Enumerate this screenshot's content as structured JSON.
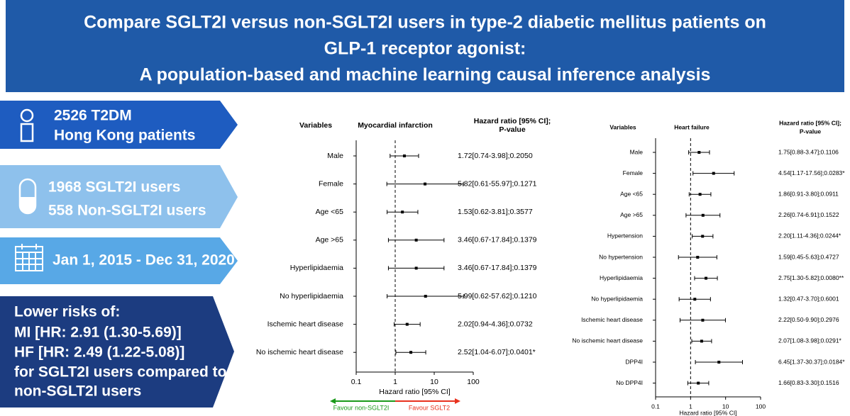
{
  "header": {
    "title_lines": [
      "Compare SGLT2I versus non-SGLT2I users in type-2 diabetic mellitus patients on",
      "GLP-1 receptor agonist:",
      "A population-based and machine learning causal inference analysis"
    ]
  },
  "panels": [
    {
      "lines": [
        "2526 T2DM",
        "Hong Kong patients"
      ]
    },
    {
      "lines": [
        "1968 SGLT2I users",
        "558 Non-SGLT2I users"
      ]
    },
    {
      "lines": [
        "Jan 1, 2015 - Dec 31, 2020"
      ]
    },
    {
      "lines": [
        "Lower risks of:",
        "MI [HR: 2.91 (1.30-5.69)]",
        "HF [HR: 2.49 (1.22-5.08)]",
        "for SGLT2I users compared to",
        "non-SGLT2I users"
      ]
    }
  ],
  "chart_data": [
    {
      "type": "forest",
      "title": "Myocardial infarction",
      "variables_header": "Variables",
      "estimate_header": [
        "Hazard ratio [95% CI];",
        "P-value"
      ],
      "categories": [
        "Male",
        "Female",
        "Age <65",
        "Age >65",
        "Hyperlipidaemia",
        "No hyperlipidaemia",
        "Ischemic heart disease",
        "No ischemic heart disease"
      ],
      "values": [
        1.72,
        5.82,
        1.53,
        3.46,
        3.46,
        5.99,
        2.02,
        2.52
      ],
      "ci_low": [
        0.74,
        0.61,
        0.62,
        0.67,
        0.67,
        0.62,
        0.94,
        1.04
      ],
      "ci_high": [
        3.98,
        55.97,
        3.81,
        17.84,
        17.84,
        57.62,
        4.36,
        6.07
      ],
      "value_labels": [
        "1.72[0.74-3.98];0.2050",
        "5.82[0.61-55.97];0.1271",
        "1.53[0.62-3.81];0.3577",
        "3.46[0.67-17.84];0.1379",
        "3.46[0.67-17.84];0.1379",
        "5.99[0.62-57.62];0.1210",
        "2.02[0.94-4.36];0.0732",
        "2.52[1.04-6.07];0.0401*"
      ],
      "xlabel": "Hazard ratio [95% CI]",
      "xlim": [
        0.1,
        100
      ],
      "xticks": [
        0.1,
        1,
        10,
        100
      ],
      "log_x": true,
      "reference_line": 1,
      "favour_labels": [
        {
          "text": "Favour non-SGLT2I",
          "color": "#1a9a1a"
        },
        {
          "text": "Favour SGLT2",
          "color": "#e8321e"
        }
      ]
    },
    {
      "type": "forest",
      "title": "Heart failure",
      "variables_header": "Variables",
      "estimate_header": [
        "Hazard ratio [95% CI];",
        "P-value"
      ],
      "categories": [
        "Male",
        "Female",
        "Age <65",
        "Age >65",
        "Hypertension",
        "No hypertension",
        "Hyperlipidaemia",
        "No hyperlipidaemia",
        "Ischemic heart disease",
        "No ischemic heart disease",
        "DPP4I",
        "No DPP4I"
      ],
      "values": [
        1.75,
        4.54,
        1.86,
        2.26,
        2.2,
        1.59,
        2.75,
        1.32,
        2.22,
        2.07,
        6.45,
        1.66
      ],
      "ci_low": [
        0.88,
        1.17,
        0.91,
        0.74,
        1.11,
        0.45,
        1.3,
        0.47,
        0.5,
        1.08,
        1.37,
        0.83
      ],
      "ci_high": [
        3.47,
        17.56,
        3.8,
        6.91,
        4.36,
        5.63,
        5.82,
        3.7,
        9.9,
        3.98,
        30.37,
        3.3
      ],
      "value_labels": [
        "1.75[0.88-3.47];0.1106",
        "4.54[1.17-17.56];0.0283*",
        "1.86[0.91-3.80];0.0911",
        "2.26[0.74-6.91];0.1522",
        "2.20[1.11-4.36];0.0244*",
        "1.59[0.45-5.63];0.4727",
        "2.75[1.30-5.82];0.0080**",
        "1.32[0.47-3.70];0.6001",
        "2.22[0.50-9.90];0.2976",
        "2.07[1.08-3.98];0.0291*",
        "6.45[1.37-30.37];0.0184*",
        "1.66[0.83-3.30];0.1516"
      ],
      "xlabel": "Hazard ratio [95% CI]",
      "xlim": [
        0.1,
        100
      ],
      "xticks": [
        0.1,
        1,
        10,
        100
      ],
      "log_x": true,
      "reference_line": 1
    }
  ]
}
